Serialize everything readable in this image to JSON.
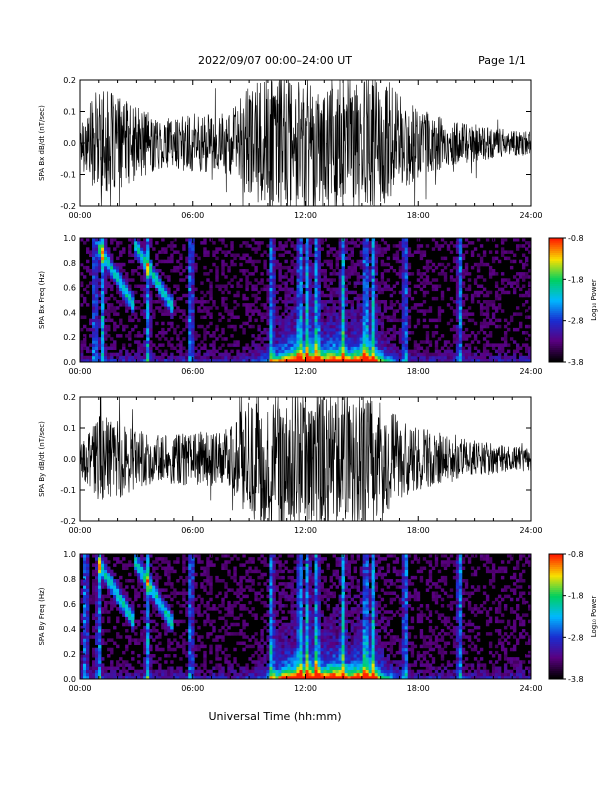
{
  "header": {
    "title": "2022/09/07  00:00–24:00 UT",
    "page": "Page 1/1"
  },
  "footer": {
    "xlabel": "Universal Time (hh:mm)"
  },
  "colors": {
    "waveform": "#000000",
    "spectro_background": "#000000",
    "colormap": [
      "#000000",
      "#5a0080",
      "#1a2cd0",
      "#00b8ff",
      "#00d060",
      "#f8e000",
      "#ff2000"
    ]
  },
  "chart_data": [
    {
      "id": "bx-wave",
      "type": "line",
      "title": "",
      "xlabel": "",
      "ylabel": "SPA Bx dB/dt (nT/sec)",
      "xlim": [
        "00:00",
        "24:00"
      ],
      "ylim": [
        -0.2,
        0.2
      ],
      "x_ticks": [
        "00:00",
        "06:00",
        "12:00",
        "18:00",
        "24:00"
      ],
      "y_ticks": [
        "-0.2",
        "-0.1",
        "0.0",
        "0.1",
        "0.2"
      ],
      "series": [
        {
          "x_hours": [
            0,
            1,
            2,
            3,
            4,
            5,
            6,
            7,
            8,
            9,
            10,
            11,
            12,
            13,
            14,
            15,
            16,
            17,
            18,
            19,
            20,
            21,
            22,
            23,
            24
          ],
          "amplitude_envelope": [
            0.07,
            0.18,
            0.15,
            0.12,
            0.09,
            0.08,
            0.1,
            0.09,
            0.1,
            0.18,
            0.22,
            0.22,
            0.22,
            0.22,
            0.22,
            0.22,
            0.2,
            0.16,
            0.11,
            0.09,
            0.07,
            0.06,
            0.05,
            0.04,
            0.04
          ]
        }
      ]
    },
    {
      "id": "bx-spectro",
      "type": "heatmap",
      "title": "",
      "ylabel": "SPA Bx Freq (Hz)",
      "xlim": [
        "00:00",
        "24:00"
      ],
      "ylim": [
        0.0,
        1.0
      ],
      "x_ticks": [
        "00:00",
        "06:00",
        "12:00",
        "18:00",
        "24:00"
      ],
      "y_ticks": [
        "0.0",
        "0.2",
        "0.4",
        "0.6",
        "0.8",
        "1.0"
      ],
      "colorbar": {
        "label": "Log₁₀ Power",
        "ticks": [
          "-0.8",
          "-1.8",
          "-2.8",
          "-3.8"
        ],
        "range": [
          -3.8,
          -0.8
        ]
      },
      "features": {
        "low_freq_band_peak_hours": [
          11.5,
          12.5,
          13.5,
          15.0
        ],
        "pc1_structure_hours": [
          2.5,
          4.5
        ],
        "vertical_bursts_hours": [
          0.8,
          1.2,
          3.6,
          5.9,
          10.2,
          11.7,
          12.1,
          12.6,
          14.0,
          15.2,
          15.6,
          17.3,
          20.2
        ]
      }
    },
    {
      "id": "by-wave",
      "type": "line",
      "title": "",
      "xlabel": "",
      "ylabel": "SPA By dB/dt (nT/sec)",
      "xlim": [
        "00:00",
        "24:00"
      ],
      "ylim": [
        -0.2,
        0.2
      ],
      "x_ticks": [
        "00:00",
        "06:00",
        "12:00",
        "18:00",
        "24:00"
      ],
      "y_ticks": [
        "-0.2",
        "-0.1",
        "0.0",
        "0.1",
        "0.2"
      ],
      "series": [
        {
          "x_hours": [
            0,
            1,
            2,
            3,
            4,
            5,
            6,
            7,
            8,
            9,
            10,
            11,
            12,
            13,
            14,
            15,
            16,
            17,
            18,
            19,
            20,
            21,
            22,
            23,
            24
          ],
          "amplitude_envelope": [
            0.05,
            0.14,
            0.13,
            0.1,
            0.08,
            0.08,
            0.09,
            0.09,
            0.1,
            0.2,
            0.22,
            0.22,
            0.22,
            0.22,
            0.22,
            0.22,
            0.19,
            0.14,
            0.1,
            0.09,
            0.07,
            0.06,
            0.05,
            0.04,
            0.04
          ]
        }
      ]
    },
    {
      "id": "by-spectro",
      "type": "heatmap",
      "title": "",
      "ylabel": "SPA By Freq (Hz)",
      "xlim": [
        "00:00",
        "24:00"
      ],
      "ylim": [
        0.0,
        1.0
      ],
      "x_ticks": [
        "00:00",
        "06:00",
        "12:00",
        "18:00",
        "24:00"
      ],
      "y_ticks": [
        "0.0",
        "0.2",
        "0.4",
        "0.6",
        "0.8",
        "1.0"
      ],
      "colorbar": {
        "label": "Log₁₀ Power",
        "ticks": [
          "-0.8",
          "-1.8",
          "-2.8",
          "-3.8"
        ],
        "range": [
          -3.8,
          -0.8
        ]
      },
      "features": {
        "low_freq_band_peak_hours": [
          11.5,
          12.5,
          13.5,
          15.0
        ],
        "pc1_structure_hours": [
          2.5,
          4.5
        ],
        "vertical_bursts_hours": [
          0.3,
          1.0,
          3.6,
          5.9,
          10.2,
          11.7,
          12.1,
          12.6,
          14.0,
          15.2,
          15.6,
          17.3,
          20.2
        ]
      }
    }
  ]
}
